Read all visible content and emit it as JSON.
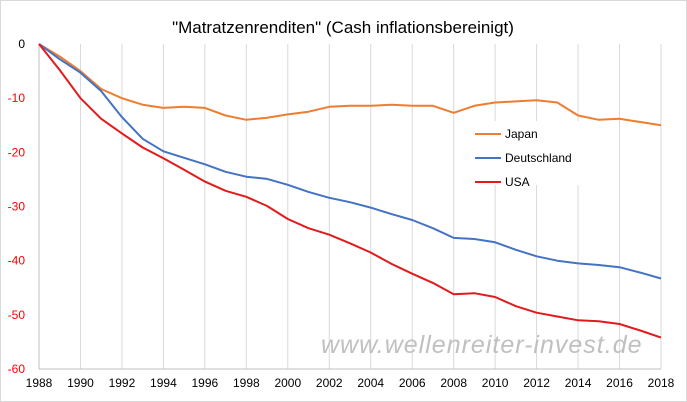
{
  "chart_data": {
    "type": "line",
    "title": "\"Matratzenrenditen\" (Cash inflationsbereinigt)",
    "xlabel": "",
    "ylabel": "",
    "x": [
      1988,
      1989,
      1990,
      1991,
      1992,
      1993,
      1994,
      1995,
      1996,
      1997,
      1998,
      1999,
      2000,
      2001,
      2002,
      2003,
      2004,
      2005,
      2006,
      2007,
      2008,
      2009,
      2010,
      2011,
      2012,
      2013,
      2014,
      2015,
      2016,
      2017,
      2018
    ],
    "xlim": [
      1988,
      2018
    ],
    "ylim": [
      -60,
      0
    ],
    "xticks": [
      "1988",
      "1990",
      "1992",
      "1994",
      "1996",
      "1998",
      "2000",
      "2002",
      "2004",
      "2006",
      "2008",
      "2010",
      "2012",
      "2014",
      "2016",
      "2018"
    ],
    "yticks": [
      "0",
      "-10",
      "-20",
      "-30",
      "-40",
      "-50",
      "-60"
    ],
    "grid": "vertical",
    "legend_position": "right",
    "series": [
      {
        "name": "Japan",
        "color": "#ED7D31",
        "values": [
          0,
          -2.3,
          -5.0,
          -8.3,
          -10.0,
          -11.2,
          -11.8,
          -11.6,
          -11.8,
          -13.2,
          -14.0,
          -13.6,
          -13.0,
          -12.5,
          -11.6,
          -11.4,
          -11.4,
          -11.2,
          -11.4,
          -11.4,
          -12.7,
          -11.4,
          -10.8,
          -10.6,
          -10.4,
          -10.8,
          -13.2,
          -14.0,
          -13.8,
          -14.4,
          -15.0
        ]
      },
      {
        "name": "Deutschland",
        "color": "#4472C4",
        "values": [
          0,
          -2.8,
          -5.3,
          -8.7,
          -13.5,
          -17.5,
          -19.8,
          -21.0,
          -22.2,
          -23.6,
          -24.5,
          -24.9,
          -26.0,
          -27.3,
          -28.4,
          -29.2,
          -30.2,
          -31.4,
          -32.5,
          -34.0,
          -35.8,
          -36.0,
          -36.6,
          -38.0,
          -39.2,
          -40.0,
          -40.5,
          -40.8,
          -41.2,
          -42.2,
          -43.3
        ]
      },
      {
        "name": "USA",
        "color": "#E31A1C",
        "values": [
          0,
          -4.8,
          -10.0,
          -13.8,
          -16.5,
          -19.1,
          -21.1,
          -23.2,
          -25.4,
          -27.1,
          -28.2,
          -29.9,
          -32.3,
          -34.0,
          -35.2,
          -36.8,
          -38.5,
          -40.6,
          -42.4,
          -44.1,
          -46.2,
          -46.0,
          -46.7,
          -48.4,
          -49.6,
          -50.3,
          -51.0,
          -51.2,
          -51.7,
          -52.9,
          -54.2
        ]
      }
    ]
  },
  "watermark": "www.wellenreiter-invest.de"
}
